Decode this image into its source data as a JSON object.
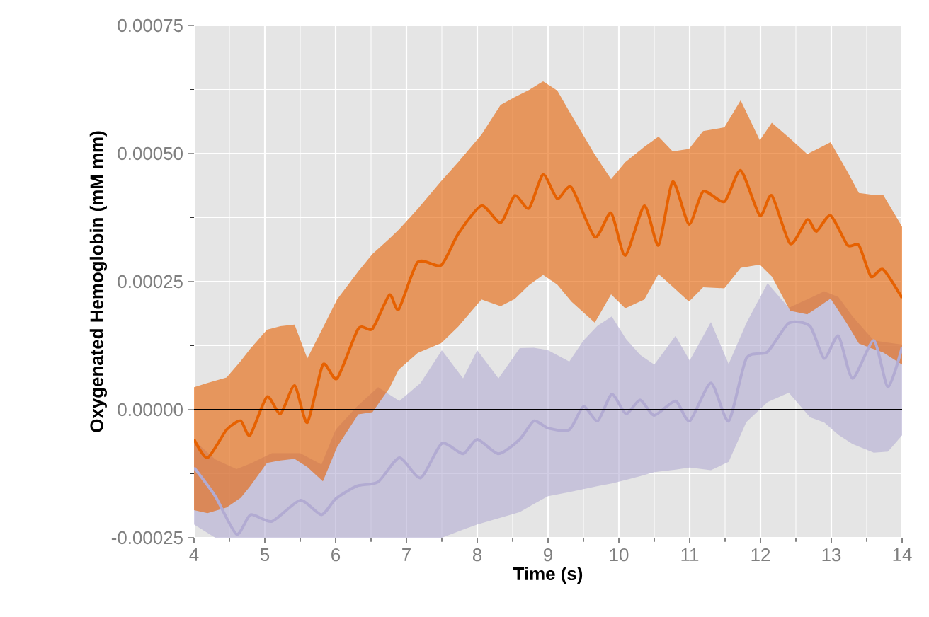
{
  "chart_data": {
    "type": "line",
    "xlabel": "Time (s)",
    "ylabel": "Oxygenated Hemoglobin (mM mm)",
    "xlim": [
      4,
      14
    ],
    "xticks": [
      4,
      5,
      6,
      7,
      8,
      9,
      10,
      11,
      12,
      13,
      14
    ],
    "ylim": [
      -0.00025,
      0.00075
    ],
    "yticks": [
      {
        "value": -0.00025,
        "label": "-0.00025"
      },
      {
        "value": 0,
        "label": "0.00000"
      },
      {
        "value": 0.00025,
        "label": "0.00025"
      },
      {
        "value": 0.0005,
        "label": "0.00050"
      },
      {
        "value": 0.00075,
        "label": "0.00075"
      }
    ],
    "grid": true,
    "line_style": "solid",
    "ref_lines": [
      {
        "axis": "y",
        "value": 0,
        "color": "#000000"
      }
    ],
    "series": [
      {
        "color": "#b2abd2",
        "x": [
          4.0,
          4.3,
          4.6,
          4.8,
          5.1,
          5.5,
          5.8,
          6.0,
          6.3,
          6.6,
          6.9,
          7.2,
          7.5,
          7.8,
          8.0,
          8.3,
          8.6,
          8.8,
          9.0,
          9.3,
          9.5,
          9.7,
          9.9,
          10.1,
          10.3,
          10.5,
          10.8,
          11.0,
          11.3,
          11.55,
          11.8,
          12.1,
          12.4,
          12.7,
          12.9,
          13.1,
          13.3,
          13.6,
          13.8,
          14.0
        ],
        "values": [
          -0.000113,
          -0.000169,
          -0.000243,
          -0.000205,
          -0.000218,
          -0.000177,
          -0.000205,
          -0.000174,
          -0.000149,
          -0.000141,
          -9.4e-05,
          -0.000133,
          -6.6e-05,
          -8.6e-05,
          -5.8e-05,
          -8.6e-05,
          -5.8e-05,
          -2.2e-05,
          -3.6e-05,
          -3.9e-05,
          6e-06,
          -2.2e-05,
          3e-05,
          -8e-06,
          1.9e-05,
          -1.1e-05,
          1.7e-05,
          -2.2e-05,
          5.2e-05,
          -2.2e-05,
          0.0001,
          0.000113,
          0.000169,
          0.000163,
          0.0001,
          0.000144,
          6.1e-05,
          0.000135,
          4.4e-05,
          0.000122
        ],
        "upper": [
          -6e-05,
          -9.7e-05,
          -0.000116,
          -0.000105,
          -8.5e-05,
          -8.5e-05,
          -0.000107,
          -3.9e-05,
          6e-06,
          4.4e-05,
          1.7e-05,
          5.2e-05,
          0.000116,
          6.1e-05,
          0.000116,
          6.1e-05,
          0.00012,
          0.000121,
          0.000116,
          9.4e-05,
          0.000135,
          0.000164,
          0.000182,
          0.000138,
          0.000107,
          8.8e-05,
          0.000144,
          9.6e-05,
          0.000171,
          8.9e-05,
          0.000169,
          0.000247,
          0.000199,
          0.000218,
          0.000231,
          0.00022,
          0.000182,
          0.000135,
          0.000131,
          0.000127
        ],
        "lower": [
          -0.000224,
          -0.00025,
          -0.00025,
          -0.00025,
          -0.00025,
          -0.00025,
          -0.00025,
          -0.00025,
          -0.00025,
          -0.00025,
          -0.00025,
          -0.00025,
          -0.00025,
          -0.000234,
          -0.000224,
          -0.000212,
          -0.0002,
          -0.000184,
          -0.000169,
          -0.000161,
          -0.000155,
          -0.000149,
          -0.000144,
          -0.000137,
          -0.00013,
          -0.000122,
          -0.000117,
          -0.000113,
          -0.000118,
          -0.000102,
          -2.4e-05,
          1.5e-05,
          3.3e-05,
          -1.5e-05,
          -2.5e-05,
          -4.9e-05,
          -6.7e-05,
          -8.4e-05,
          -8.2e-05,
          -5e-05
        ]
      },
      {
        "color": "#e66101",
        "x": [
          4.0,
          4.19,
          4.46,
          4.66,
          4.79,
          5.03,
          5.22,
          5.42,
          5.6,
          5.82,
          6.02,
          6.32,
          6.52,
          6.76,
          6.89,
          7.16,
          7.49,
          7.73,
          8.06,
          8.33,
          8.53,
          8.73,
          8.93,
          9.13,
          9.33,
          9.66,
          9.89,
          10.09,
          10.36,
          10.56,
          10.76,
          10.99,
          11.19,
          11.49,
          11.72,
          11.99,
          12.16,
          12.42,
          12.66,
          12.79,
          12.99,
          13.23,
          13.39,
          13.56,
          13.73,
          14.0
        ],
        "values": [
          -5.8e-05,
          -9.4e-05,
          -3.9e-05,
          -2.2e-05,
          -5e-05,
          2.5e-05,
          -8e-06,
          4.7e-05,
          -2.5e-05,
          8.8e-05,
          6.1e-05,
          0.000158,
          0.000158,
          0.000224,
          0.000196,
          0.000288,
          0.000282,
          0.000343,
          0.000398,
          0.000365,
          0.000418,
          0.000393,
          0.000459,
          0.000412,
          0.000434,
          0.000337,
          0.000384,
          0.000301,
          0.000398,
          0.000321,
          0.000445,
          0.000362,
          0.000426,
          0.000406,
          0.000467,
          0.000379,
          0.000418,
          0.000324,
          0.000371,
          0.000348,
          0.000379,
          0.000321,
          0.000321,
          0.00026,
          0.000274,
          0.000218
        ],
        "upper": [
          4.4e-05,
          5.2e-05,
          6.3e-05,
          9.5e-05,
          0.000118,
          0.000156,
          0.000163,
          0.000166,
          0.0001,
          0.00016,
          0.000215,
          0.00027,
          0.000304,
          0.000334,
          0.000351,
          0.000392,
          0.000446,
          0.000483,
          0.000537,
          0.000595,
          0.00061,
          0.000624,
          0.000641,
          0.000623,
          0.000575,
          0.000498,
          0.00045,
          0.000483,
          0.000513,
          0.000533,
          0.000504,
          0.000509,
          0.000544,
          0.000551,
          0.000604,
          0.000526,
          0.00056,
          0.000529,
          0.000499,
          0.000508,
          0.000522,
          0.000464,
          0.000423,
          0.00042,
          0.00042,
          0.000357
        ],
        "lower": [
          -0.000196,
          -0.000202,
          -0.000191,
          -0.000172,
          -0.00015,
          -0.000104,
          -9.9e-05,
          -9.6e-05,
          -0.000112,
          -0.00014,
          -7.3e-05,
          -9e-06,
          -5e-06,
          4.2e-05,
          7.8e-05,
          0.000111,
          0.00013,
          0.000162,
          0.000215,
          0.000202,
          0.000216,
          0.000243,
          0.000263,
          0.000244,
          0.000211,
          0.00017,
          0.000225,
          0.000198,
          0.000215,
          0.000265,
          0.00024,
          0.000211,
          0.000239,
          0.000237,
          0.000277,
          0.000283,
          0.00026,
          0.000193,
          0.000186,
          0.000198,
          0.000217,
          0.000166,
          0.000129,
          0.00012,
          0.000112,
          8.8e-05
        ]
      }
    ]
  }
}
